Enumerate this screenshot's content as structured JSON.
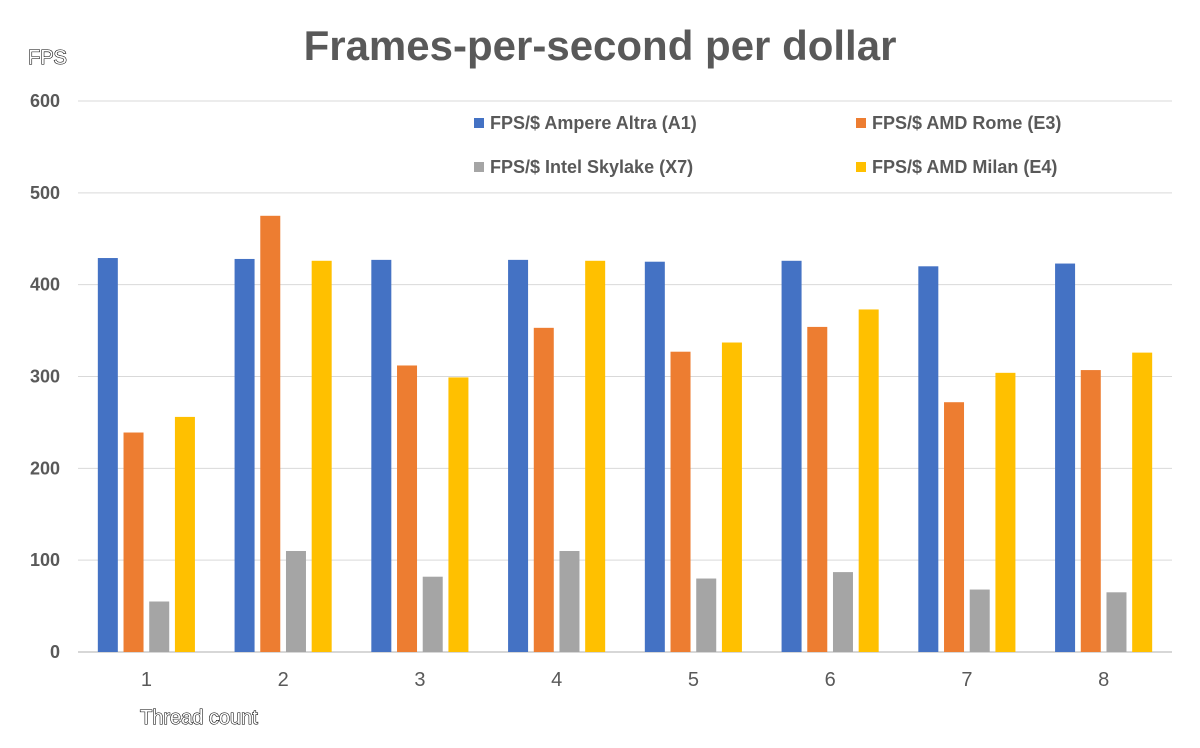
{
  "chart_data": {
    "type": "bar",
    "title": "Frames-per-second per dollar",
    "ylabel": "FPS",
    "xlabel": "Thread count",
    "categories": [
      "1",
      "2",
      "3",
      "4",
      "5",
      "6",
      "7",
      "8"
    ],
    "ylim": [
      0,
      600
    ],
    "yticks": [
      0,
      100,
      200,
      300,
      400,
      500,
      600
    ],
    "grid": true,
    "legend_position": "top-right",
    "series": [
      {
        "name": "FPS/$ Ampere Altra (A1)",
        "color": "#4472C4",
        "values": [
          429,
          428,
          427,
          427,
          425,
          426,
          420,
          423
        ]
      },
      {
        "name": "FPS/$ AMD Rome (E3)",
        "color": "#ED7D31",
        "values": [
          239,
          475,
          312,
          353,
          327,
          354,
          272,
          307
        ]
      },
      {
        "name": "FPS/$ Intel Skylake (X7)",
        "color": "#A5A5A5",
        "values": [
          55,
          110,
          82,
          110,
          80,
          87,
          68,
          65
        ]
      },
      {
        "name": "FPS/$ AMD Milan (E4)",
        "color": "#FFC000",
        "values": [
          256,
          426,
          299,
          426,
          337,
          373,
          304,
          326
        ]
      }
    ]
  }
}
